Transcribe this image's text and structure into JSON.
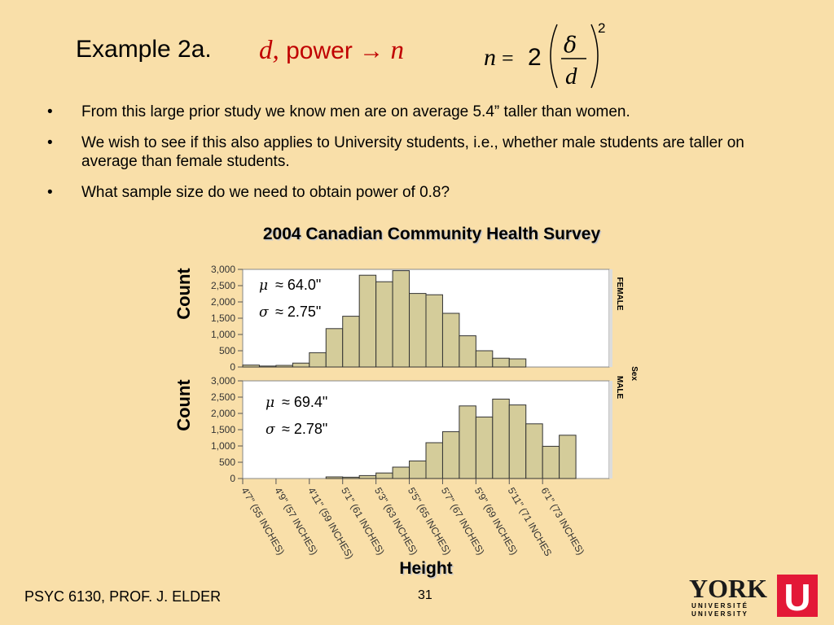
{
  "slide": {
    "title": "Example 2a.",
    "title_math": {
      "d": "d,",
      "power": "power",
      "arrow": "→",
      "n": "n"
    },
    "formula": {
      "n": "n",
      "equals": "=",
      "two": "2",
      "numerator": "δ",
      "denominator": "d",
      "exponent": "2"
    },
    "bullets": [
      {
        "marker": "•",
        "text": "From this large prior study we know men are on average 5.4” taller than women."
      },
      {
        "marker": "•",
        "text": "We wish to see if this also applies to University students, i.e., whether male students are taller on average than female students."
      },
      {
        "marker": "•",
        "text": "What sample size do we need to obtain power of 0.8?"
      }
    ],
    "footer": {
      "course": "PSYC 6130, PROF. J. ELDER",
      "page": "31"
    },
    "logo": {
      "name": "YORK",
      "line1": "U N I V E R S I T É",
      "line2": "U N I V E R S I T Y",
      "mark": "U",
      "colors": {
        "text": "#1a1a1a",
        "mark": "#e31837"
      }
    }
  },
  "chart_data": {
    "type": "bar",
    "title": "2004 Canadian Community Health Survey",
    "xlabel": "Height",
    "ylabel": "Count",
    "legend_title": "Sex",
    "ylim": [
      0,
      3000
    ],
    "yticks": [
      "3,000",
      "2,500",
      "2,000",
      "1,500",
      "1,000",
      "500",
      "0"
    ],
    "ytick_values": [
      3000,
      2500,
      2000,
      1500,
      1000,
      500,
      0
    ],
    "bin_start": 55,
    "bin_width": 1,
    "xtick_labels": [
      {
        "line1": "4'7\"",
        "line2": "(55 INCHES)"
      },
      {
        "line1": "4'9\"",
        "line2": "(57 INCHES)"
      },
      {
        "line1": "4'11\"",
        "line2": "(59 INCHES)"
      },
      {
        "line1": "5'1\"",
        "line2": "(61 INCHES)"
      },
      {
        "line1": "5'3\"",
        "line2": "(63 INCHES)"
      },
      {
        "line1": "5'5\"",
        "line2": "(65 INCHES)"
      },
      {
        "line1": "5'7\"",
        "line2": "(67 INCHES)"
      },
      {
        "line1": "5'9\"",
        "line2": "(69 INCHES)"
      },
      {
        "line1": "5'11\"",
        "line2": "(71 INCHES"
      },
      {
        "line1": "6'1\"",
        "line2": "(73 INCHES)"
      }
    ],
    "xtick_values": [
      55,
      57,
      59,
      61,
      63,
      65,
      67,
      69,
      71,
      73
    ],
    "series": [
      {
        "name": "FEMALE",
        "mu_symbol": "μ",
        "mu_text": "≈ 64.0\"",
        "sigma_symbol": "σ",
        "sigma_text": "≈ 2.75\"",
        "values": [
          60,
          30,
          50,
          120,
          440,
          1180,
          1560,
          2820,
          2620,
          2960,
          2260,
          2220,
          1650,
          960,
          500,
          270,
          250
        ]
      },
      {
        "name": "MALE",
        "mu_symbol": "μ",
        "mu_text": "≈ 69.4\"",
        "sigma_symbol": "σ",
        "sigma_text": "≈ 2.78\"",
        "values": [
          0,
          0,
          0,
          0,
          0,
          50,
          40,
          90,
          170,
          350,
          540,
          1100,
          1440,
          2230,
          1890,
          2440,
          2260,
          1680,
          990,
          1330
        ]
      }
    ],
    "colors": {
      "bar_fill": "#d4cc9a",
      "bar_stroke": "#333333",
      "plot_bg": "#ffffff",
      "panel_bg": "#dcdcdc"
    }
  }
}
